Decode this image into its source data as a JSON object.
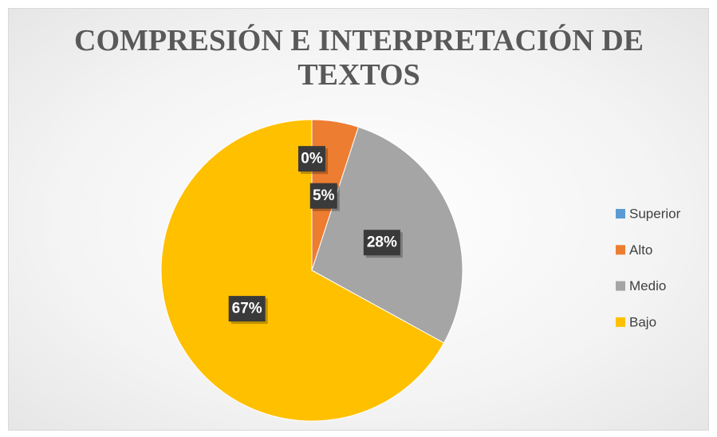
{
  "chart_data": {
    "type": "pie",
    "title": "COMPRESIÓN E INTERPRETACIÓN DE TEXTOS",
    "categories": [
      "Superior",
      "Alto",
      "Medio",
      "Bajo"
    ],
    "values": [
      0,
      5,
      28,
      67
    ],
    "value_labels": [
      "0%",
      "5%",
      "28%",
      "67%"
    ],
    "colors": [
      "#5b9bd5",
      "#ed7d31",
      "#a5a5a5",
      "#ffc000"
    ],
    "legend": "right"
  }
}
